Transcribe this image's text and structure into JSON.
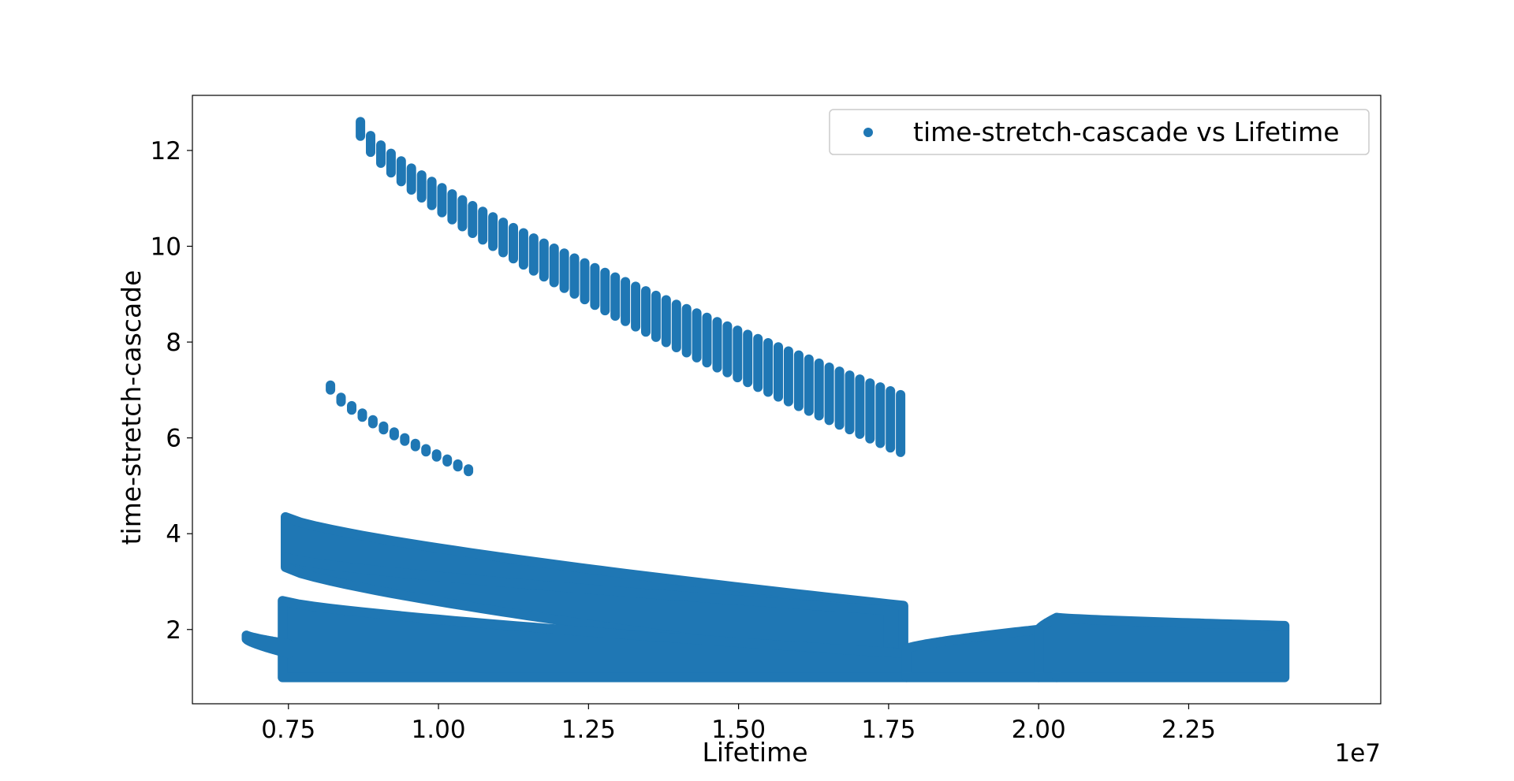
{
  "chart_data": {
    "type": "scatter",
    "xlabel": "Lifetime",
    "ylabel": "time-stretch-cascade",
    "x_offset_label": "1e7",
    "xlim": [
      5900000,
      25700000
    ],
    "ylim": [
      0.45,
      13.15
    ],
    "x_ticks": [
      {
        "value": 7500000,
        "label": "0.75"
      },
      {
        "value": 10000000,
        "label": "1.00"
      },
      {
        "value": 12500000,
        "label": "1.25"
      },
      {
        "value": 15000000,
        "label": "1.50"
      },
      {
        "value": 17500000,
        "label": "1.75"
      },
      {
        "value": 20000000,
        "label": "2.00"
      },
      {
        "value": 22500000,
        "label": "2.25"
      }
    ],
    "y_ticks": [
      {
        "value": 2,
        "label": "2"
      },
      {
        "value": 4,
        "label": "4"
      },
      {
        "value": 6,
        "label": "6"
      },
      {
        "value": 8,
        "label": "8"
      },
      {
        "value": 10,
        "label": "10"
      },
      {
        "value": 12,
        "label": "12"
      }
    ],
    "grid": false,
    "legend_position": "top-right",
    "color": "#1f77b4",
    "series": [
      {
        "name": "time-stretch-cascade vs Lifetime",
        "clusters": [
          {
            "kind": "curve",
            "x_start": 8700000,
            "x_end": 17700000,
            "y_start_high": 12.6,
            "y_end_high": 6.9,
            "y_start_low": 12.3,
            "y_end_low": 5.7
          },
          {
            "kind": "curve",
            "x_start": 8200000,
            "x_end": 10500000,
            "y_start_high": 7.1,
            "y_end_high": 5.35,
            "y_start_low": 7.0,
            "y_end_low": 5.3
          },
          {
            "kind": "band",
            "x_start": 7450000,
            "x_end": 17750000,
            "y_start_high": 4.35,
            "y_end_high": 2.5,
            "y_start_low": 3.5,
            "y_end_low": 1.5
          },
          {
            "kind": "band",
            "x_start": 7450000,
            "x_end": 17500000,
            "y_start_high": 3.5,
            "y_end_high": 2.4,
            "y_start_low": 3.3,
            "y_end_low": 1.3
          },
          {
            "kind": "band",
            "x_start": 7400000,
            "x_end": 17800000,
            "y_start_high": 2.6,
            "y_end_high": 1.5,
            "y_start_low": 1.0,
            "y_end_low": 1.0
          },
          {
            "kind": "band",
            "x_start": 6800000,
            "x_end": 7500000,
            "y_start_high": 1.88,
            "y_end_high": 1.7,
            "y_start_low": 1.8,
            "y_end_low": 1.5
          },
          {
            "kind": "band",
            "x_start": 17800000,
            "x_end": 20000000,
            "y_start_high": 1.6,
            "y_end_high": 2.0,
            "y_start_low": 1.0,
            "y_end_low": 1.0
          },
          {
            "kind": "band",
            "x_start": 20000000,
            "x_end": 20300000,
            "y_start_high": 2.0,
            "y_end_high": 2.25,
            "y_start_low": 1.0,
            "y_end_low": 1.0
          },
          {
            "kind": "band",
            "x_start": 20300000,
            "x_end": 24100000,
            "y_start_high": 2.25,
            "y_end_high": 2.08,
            "y_start_low": 1.0,
            "y_end_low": 1.0
          }
        ]
      }
    ]
  }
}
